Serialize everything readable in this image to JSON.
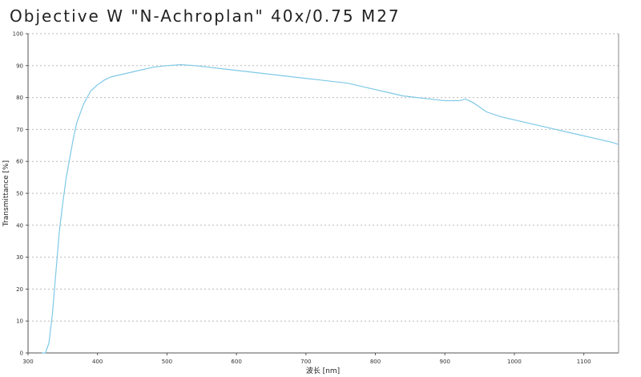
{
  "chart_data": {
    "type": "line",
    "title": "Objective W \"N-Achroplan\" 40x/0.75 M27",
    "x_label": "波长 [nm]",
    "y_label": "Transmittance [%]",
    "x": [
      320,
      325,
      330,
      335,
      340,
      345,
      350,
      355,
      360,
      365,
      370,
      375,
      380,
      385,
      390,
      400,
      410,
      420,
      440,
      460,
      480,
      500,
      520,
      540,
      560,
      580,
      600,
      620,
      640,
      660,
      680,
      700,
      720,
      740,
      760,
      780,
      800,
      820,
      840,
      860,
      880,
      900,
      920,
      930,
      940,
      950,
      960,
      980,
      1000,
      1020,
      1040,
      1060,
      1080,
      1100,
      1120,
      1140,
      1150
    ],
    "series": [
      {
        "name": "Transmittance",
        "color": "#7fc9e6",
        "values": [
          0,
          0,
          3,
          12,
          25,
          38,
          47,
          55,
          61,
          67,
          72,
          75,
          78,
          80,
          82,
          84,
          85.5,
          86.5,
          87.5,
          88.5,
          89.5,
          90,
          90.3,
          90,
          89.5,
          89,
          88.5,
          88,
          87.5,
          87,
          86.5,
          86,
          85.5,
          85,
          84.5,
          83.5,
          82.5,
          81.5,
          80.5,
          80,
          79.5,
          79,
          79,
          79.5,
          78.5,
          77,
          75.5,
          74,
          73,
          72,
          71,
          70,
          69,
          68,
          67,
          66,
          65.3
        ]
      }
    ],
    "xlim": [
      300,
      1150
    ],
    "xticks": [
      300,
      400,
      500,
      600,
      700,
      800,
      900,
      1000,
      1100
    ],
    "ylim": [
      0,
      100
    ],
    "yticks": [
      0,
      10,
      20,
      30,
      40,
      50,
      60,
      70,
      80,
      90,
      100
    ],
    "grid": true
  }
}
